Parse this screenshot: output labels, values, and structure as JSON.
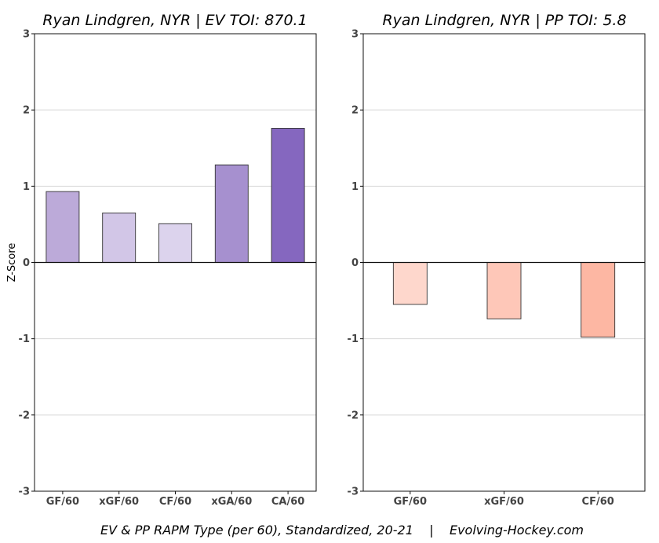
{
  "footer": "EV & PP RAPM Type (per 60), Standardized, 20-21    |    Evolving-Hockey.com",
  "chart_data": [
    {
      "type": "bar",
      "title": "Ryan Lindgren, NYR  |  EV TOI: 870.1",
      "ylabel": "Z-Score",
      "xlabel": "",
      "ylim": [
        -3,
        3
      ],
      "yticks": [
        -3,
        -2,
        -1,
        0,
        1,
        2,
        3
      ],
      "grid": true,
      "categories": [
        "GF/60",
        "xGF/60",
        "CF/60",
        "xGA/60",
        "CA/60"
      ],
      "values": [
        0.93,
        0.65,
        0.51,
        1.28,
        1.76
      ],
      "colors": [
        "#bcaad9",
        "#d2c6e7",
        "#dcd3ed",
        "#a690cf",
        "#8567bf"
      ]
    },
    {
      "type": "bar",
      "title": "Ryan Lindgren, NYR  |  PP TOI: 5.8",
      "ylabel": "",
      "xlabel": "",
      "ylim": [
        -3,
        3
      ],
      "yticks": [
        -3,
        -2,
        -1,
        0,
        1,
        2,
        3
      ],
      "grid": true,
      "categories": [
        "GF/60",
        "xGF/60",
        "CF/60"
      ],
      "values": [
        -0.55,
        -0.74,
        -0.98
      ],
      "colors": [
        "#fed7cc",
        "#fec7b8",
        "#fdb7a3"
      ]
    }
  ]
}
